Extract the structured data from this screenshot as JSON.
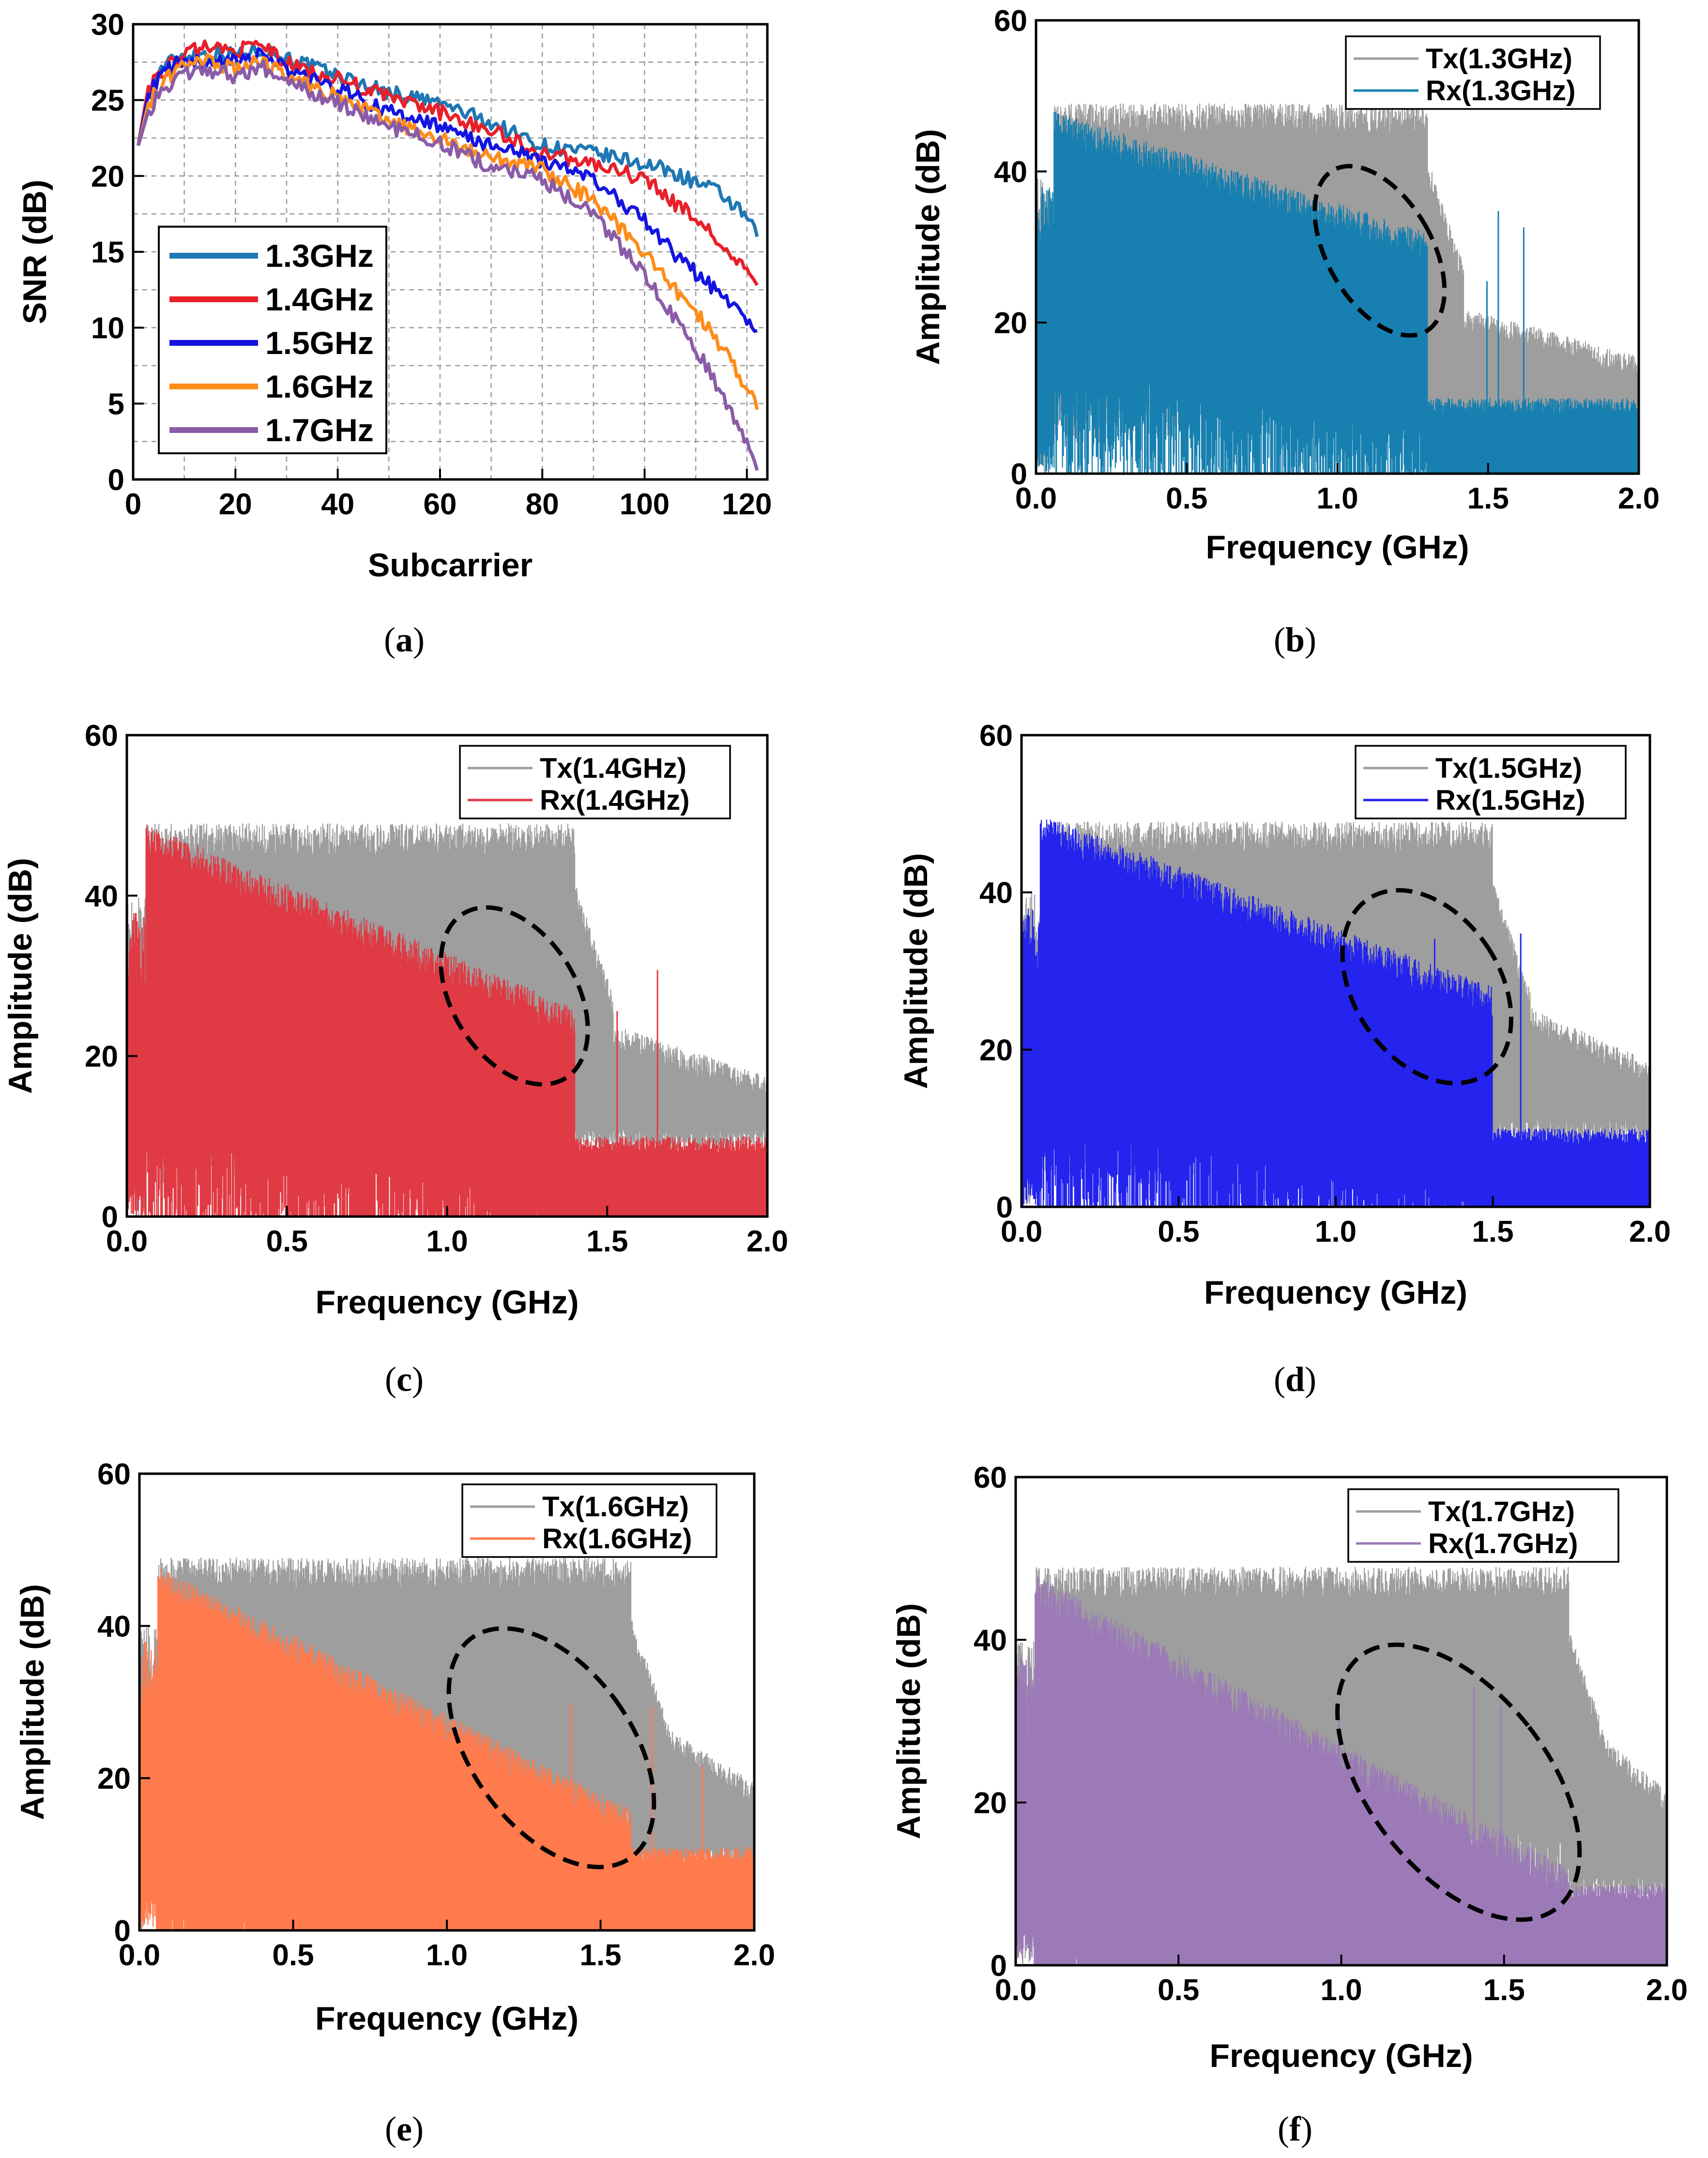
{
  "figure": {
    "panel_count": 6
  },
  "chart_data": [
    {
      "id": "a",
      "type": "line",
      "caption": "a",
      "xlabel": "Subcarrier",
      "ylabel": "SNR (dB)",
      "xlim": [
        0,
        124
      ],
      "ylim": [
        0,
        30
      ],
      "xticks": [
        0,
        20,
        40,
        60,
        80,
        100,
        120
      ],
      "yticks": [
        0,
        5,
        10,
        15,
        20,
        25,
        30
      ],
      "grid": true,
      "legend_position": "bottom-left",
      "series": [
        {
          "name": "1.3GHz",
          "color": "#1f77b4",
          "x": [
            1,
            3,
            6,
            10,
            15,
            20,
            25,
            30,
            40,
            50,
            60,
            70,
            80,
            90,
            100,
            105,
            110,
            115,
            120,
            122
          ],
          "y": [
            22,
            25.8,
            27.3,
            28.0,
            28.1,
            28.0,
            28.4,
            27.8,
            26.6,
            25.5,
            24.8,
            23.5,
            22.0,
            21.5,
            20.8,
            20.3,
            19.6,
            18.8,
            17.2,
            16.0
          ]
        },
        {
          "name": "1.4GHz",
          "color": "#e8202a",
          "x": [
            1,
            3,
            6,
            10,
            15,
            20,
            25,
            30,
            40,
            50,
            60,
            70,
            80,
            90,
            100,
            105,
            110,
            115,
            120,
            122
          ],
          "y": [
            22,
            25.9,
            27.0,
            28.0,
            28.6,
            28.2,
            28.7,
            27.4,
            26.4,
            25.2,
            24.2,
            23.0,
            21.5,
            20.8,
            19.8,
            18.4,
            17.2,
            15.5,
            13.6,
            12.8
          ]
        },
        {
          "name": "1.5GHz",
          "color": "#1414e0",
          "x": [
            1,
            3,
            6,
            10,
            15,
            20,
            25,
            30,
            40,
            50,
            60,
            70,
            80,
            90,
            100,
            105,
            110,
            115,
            120,
            122
          ],
          "y": [
            22,
            25.4,
            26.8,
            27.7,
            27.2,
            27.8,
            28.0,
            27.0,
            25.8,
            24.2,
            23.2,
            22.0,
            21.0,
            19.8,
            17.0,
            15.2,
            13.6,
            12.2,
            10.6,
            9.8
          ]
        },
        {
          "name": "1.6GHz",
          "color": "#ff8c1a",
          "x": [
            1,
            3,
            6,
            10,
            15,
            20,
            25,
            30,
            40,
            50,
            60,
            70,
            80,
            90,
            100,
            105,
            110,
            115,
            120,
            122
          ],
          "y": [
            22,
            24.8,
            26.2,
            27.3,
            27.6,
            27.0,
            27.6,
            26.6,
            25.2,
            23.6,
            22.4,
            21.2,
            20.4,
            18.4,
            15.0,
            12.8,
            11.0,
            8.8,
            6.0,
            4.6
          ]
        },
        {
          "name": "1.7GHz",
          "color": "#8a5ca8",
          "x": [
            1,
            3,
            6,
            10,
            15,
            20,
            25,
            30,
            40,
            50,
            60,
            70,
            80,
            90,
            100,
            105,
            110,
            115,
            120,
            122
          ],
          "y": [
            22,
            24.3,
            25.8,
            26.8,
            27.0,
            26.6,
            27.2,
            26.2,
            24.8,
            23.2,
            22.2,
            20.6,
            19.8,
            17.4,
            13.6,
            11.0,
            8.6,
            5.8,
            2.4,
            0.6
          ]
        }
      ]
    },
    {
      "id": "b",
      "type": "area",
      "caption": "b",
      "xlabel": "Frequency (GHz)",
      "ylabel": "Amplitude (dB)",
      "xlim": [
        0,
        2.0
      ],
      "ylim": [
        0,
        60
      ],
      "xticks": [
        "0.0",
        "0.5",
        "1.0",
        "1.5",
        "2.0"
      ],
      "yticks": [
        "0",
        "20",
        "40",
        "60"
      ],
      "cutoff_ghz": 1.3,
      "tx": {
        "name": "Tx(1.3GHz)",
        "color": "#9e9e9e",
        "inband_top": 47,
        "inband_floor": 18,
        "oob_top_start": 22,
        "oob_top_end": 14,
        "oob_floor": 6
      },
      "rx": {
        "name": "Rx(1.3GHz)",
        "color": "#1780b0",
        "top_start": 46,
        "top_end": 30,
        "floor": 14,
        "oob_top": 9,
        "oob_floor": 0
      },
      "annotation": {
        "type": "dashed-ellipse",
        "x_ghz": 1.14,
        "y_db": 29.5
      }
    },
    {
      "id": "c",
      "type": "area",
      "caption": "c",
      "xlabel": "Frequency (GHz)",
      "ylabel": "Amplitude (dB)",
      "xlim": [
        0,
        2.0
      ],
      "ylim": [
        0,
        60
      ],
      "xticks": [
        "0.0",
        "0.5",
        "1.0",
        "1.5",
        "2.0"
      ],
      "yticks": [
        "0",
        "20",
        "40",
        "60"
      ],
      "cutoff_ghz": 1.4,
      "tx": {
        "name": "Tx(1.4GHz)",
        "color": "#9e9e9e",
        "inband_top": 47,
        "inband_floor": 18,
        "oob_top_start": 24,
        "oob_top_end": 16,
        "oob_floor": 8
      },
      "rx": {
        "name": "Rx(1.4GHz)",
        "color": "#e03a44",
        "top_start": 47,
        "top_end": 24,
        "floor": 10,
        "oob_top": 9,
        "oob_floor": 0
      },
      "annotation": {
        "type": "dashed-ellipse",
        "x_ghz": 1.21,
        "y_db": 27.5
      }
    },
    {
      "id": "d",
      "type": "area",
      "caption": "d",
      "xlabel": "Frequency (GHz)",
      "ylabel": "Amplitude (dB)",
      "xlim": [
        0,
        2.0
      ],
      "ylim": [
        0,
        60
      ],
      "xticks": [
        "0.0",
        "0.5",
        "1.0",
        "1.5",
        "2.0"
      ],
      "yticks": [
        "0",
        "20",
        "40",
        "60"
      ],
      "cutoff_ghz": 1.5,
      "tx": {
        "name": "Tx(1.5GHz)",
        "color": "#9e9e9e",
        "inband_top": 47,
        "inband_floor": 18,
        "oob_top_start": 26,
        "oob_top_end": 17,
        "oob_floor": 8
      },
      "rx": {
        "name": "Rx(1.5GHz)",
        "color": "#2424ee",
        "top_start": 48,
        "top_end": 26,
        "floor": 10,
        "oob_top": 9,
        "oob_floor": 0
      },
      "annotation": {
        "type": "dashed-ellipse",
        "x_ghz": 1.29,
        "y_db": 28
      }
    },
    {
      "id": "e",
      "type": "area",
      "caption": "e",
      "xlabel": "Frequency (GHz)",
      "ylabel": "Amplitude (dB)",
      "xlim": [
        0,
        2.0
      ],
      "ylim": [
        0,
        60
      ],
      "xticks": [
        "0.0",
        "0.5",
        "1.0",
        "1.5",
        "2.0"
      ],
      "yticks": [
        "0",
        "20",
        "40",
        "60"
      ],
      "cutoff_ghz": 1.6,
      "tx": {
        "name": "Tx(1.6GHz)",
        "color": "#9e9e9e",
        "inband_top": 47,
        "inband_floor": 18,
        "oob_top_start": 28,
        "oob_top_end": 18,
        "oob_floor": 8
      },
      "rx": {
        "name": "Rx(1.6GHz)",
        "color": "#ff7a4d",
        "top_start": 46,
        "top_end": 14,
        "floor": 4,
        "oob_top": 10,
        "oob_floor": 0
      },
      "annotation": {
        "type": "dashed-ellipse",
        "x_ghz": 1.34,
        "y_db": 24
      }
    },
    {
      "id": "f",
      "type": "area",
      "caption": "f",
      "xlabel": "Frequency (GHz)",
      "ylabel": "Amplitude (dB)",
      "xlim": [
        0,
        2.0
      ],
      "ylim": [
        0,
        60
      ],
      "xticks": [
        "0.0",
        "0.5",
        "1.0",
        "1.5",
        "2.0"
      ],
      "yticks": [
        "0",
        "20",
        "40",
        "60"
      ],
      "cutoff_ghz": 1.7,
      "tx": {
        "name": "Tx(1.7GHz)",
        "color": "#9e9e9e",
        "inband_top": 47,
        "inband_floor": 18,
        "oob_top_start": 30,
        "oob_top_end": 20,
        "oob_floor": 8
      },
      "rx": {
        "name": "Rx(1.7GHz)",
        "color": "#9c7ab8",
        "top_start": 46,
        "top_end": 10,
        "floor": 2,
        "oob_top": 9,
        "oob_floor": 0
      },
      "annotation": {
        "type": "dashed-ellipse",
        "x_ghz": 1.36,
        "y_db": 22.5
      }
    }
  ]
}
